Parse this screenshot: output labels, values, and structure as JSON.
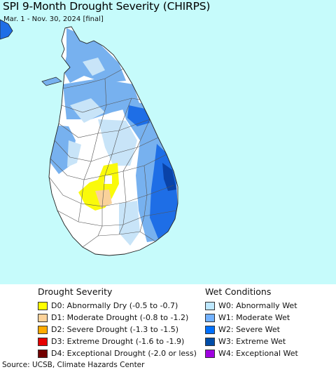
{
  "title": "SPI 9-Month Drought Severity (CHIRPS)",
  "subtitle": "Mar. 1 - Nov. 30, 2024 [final]",
  "source": "Source: UCSB, Climate Hazards Center",
  "colors": {
    "ocean": "#c6fbfb",
    "land": "#ffffff",
    "border": "#555555",
    "coast": "#222222",
    "w0": "#c8e4f8",
    "w1": "#77b1ef",
    "w2": "#1e6ee6",
    "w3": "#0a43a8",
    "d0": "#fafa0a",
    "d1": "#fad29a",
    "d2": "#f5a50e"
  },
  "drought_legend": {
    "heading": "Drought Severity",
    "items": [
      {
        "code": "D0",
        "label": "D0: Abnormally Dry (-0.5 to -0.7)",
        "color": "#ffff00"
      },
      {
        "code": "D1",
        "label": "D1: Moderate Drought (-0.8 to -1.2)",
        "color": "#fcd29a"
      },
      {
        "code": "D2",
        "label": "D2: Severe Drought (-1.3 to -1.5)",
        "color": "#ffaa00"
      },
      {
        "code": "D3",
        "label": "D3: Extreme Drought (-1.6 to -1.9)",
        "color": "#e60000"
      },
      {
        "code": "D4",
        "label": "D4: Exceptional Drought (-2.0 or less)",
        "color": "#730000"
      }
    ]
  },
  "wet_legend": {
    "heading": "Wet Conditions",
    "items": [
      {
        "code": "W0",
        "label": "W0: Abnormally Wet",
        "color": "#bee8ff"
      },
      {
        "code": "W1",
        "label": "W1: Moderate Wet",
        "color": "#73b2ff"
      },
      {
        "code": "W2",
        "label": "W2: Severe Wet",
        "color": "#0070ff"
      },
      {
        "code": "W3",
        "label": "W3: Extreme Wet",
        "color": "#004da8"
      },
      {
        "code": "W4",
        "label": "W4: Exceptional Wet",
        "color": "#9f00e0"
      }
    ]
  }
}
